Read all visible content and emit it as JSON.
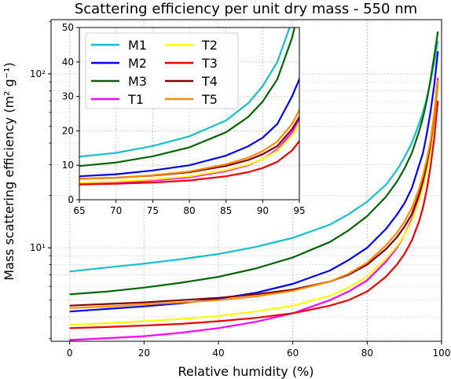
{
  "chart_data": {
    "type": "line",
    "title": "Scattering efficiency per unit dry mass - 550 nm",
    "xlabel": "Relative humidity (%)",
    "ylabel": "Mass scattering efficiency (m² g⁻¹)",
    "yscale": "log",
    "xlim": [
      -5,
      100
    ],
    "ylim": [
      2.9,
      205
    ],
    "xticks": [
      "0",
      "20",
      "40",
      "60",
      "80",
      "100"
    ],
    "yticks_major": [
      {
        "value": 10,
        "label": "10¹"
      },
      {
        "value": 100,
        "label": "10²"
      }
    ],
    "grid": true,
    "legend": "inset",
    "series": [
      {
        "name": "M1",
        "color": "#17becf",
        "x": [
          0,
          10,
          20,
          30,
          40,
          50,
          60,
          70,
          75,
          80,
          85,
          88,
          90,
          92,
          94,
          95,
          96,
          97,
          98,
          99
        ],
        "y": [
          7.3,
          7.7,
          8.1,
          8.6,
          9.2,
          10.1,
          11.4,
          13.6,
          15.6,
          18.4,
          23,
          28,
          33,
          40,
          52,
          60,
          72,
          90,
          115,
          155
        ]
      },
      {
        "name": "M2",
        "color": "#0000ee",
        "x": [
          0,
          10,
          20,
          30,
          40,
          50,
          60,
          70,
          75,
          80,
          85,
          88,
          90,
          92,
          94,
          95,
          96,
          97,
          98,
          99
        ],
        "y": [
          4.3,
          4.45,
          4.6,
          4.8,
          5.1,
          5.5,
          6.2,
          7.4,
          8.5,
          10,
          12.8,
          15.5,
          18,
          22,
          30,
          35,
          45,
          60,
          85,
          135
        ]
      },
      {
        "name": "M3",
        "color": "#006400",
        "x": [
          0,
          10,
          20,
          30,
          40,
          50,
          60,
          70,
          75,
          80,
          85,
          88,
          90,
          92,
          94,
          95,
          96,
          97,
          98,
          99
        ],
        "y": [
          5.4,
          5.6,
          5.9,
          6.3,
          6.8,
          7.6,
          8.8,
          10.8,
          12.6,
          15.2,
          19.6,
          24,
          28.5,
          35,
          47,
          56,
          70,
          92,
          125,
          175
        ]
      },
      {
        "name": "T1",
        "color": "#ff00ff",
        "x": [
          0,
          10,
          20,
          30,
          40,
          50,
          60,
          70,
          75,
          80,
          85,
          88,
          90,
          92,
          94,
          95,
          96,
          97,
          98,
          99
        ],
        "y": [
          2.95,
          3.02,
          3.1,
          3.25,
          3.45,
          3.75,
          4.2,
          5,
          5.6,
          6.5,
          8.3,
          10,
          11.8,
          14.6,
          19.6,
          23.5,
          30,
          40,
          58,
          95
        ]
      },
      {
        "name": "T2",
        "color": "#ffff00",
        "x": [
          0,
          10,
          20,
          30,
          40,
          50,
          60,
          70,
          75,
          80,
          85,
          88,
          90,
          92,
          94,
          95,
          96,
          97,
          98,
          99
        ],
        "y": [
          3.6,
          3.68,
          3.78,
          3.9,
          4.05,
          4.3,
          4.65,
          5.3,
          5.9,
          6.8,
          8.6,
          10.2,
          11.8,
          14.2,
          18.6,
          22,
          27.5,
          36,
          52,
          85
        ]
      },
      {
        "name": "T3",
        "color": "#ee0000",
        "x": [
          0,
          10,
          20,
          30,
          40,
          50,
          60,
          70,
          75,
          80,
          85,
          88,
          90,
          92,
          94,
          95,
          96,
          97,
          98,
          99
        ],
        "y": [
          3.45,
          3.5,
          3.57,
          3.65,
          3.78,
          3.95,
          4.2,
          4.65,
          5,
          5.6,
          6.8,
          8,
          9.2,
          11,
          14.3,
          17,
          21.5,
          29,
          42,
          70
        ]
      },
      {
        "name": "T4",
        "color": "#800000",
        "x": [
          0,
          10,
          20,
          30,
          40,
          50,
          60,
          70,
          75,
          80,
          85,
          88,
          90,
          92,
          94,
          95,
          96,
          97,
          98,
          99
        ],
        "y": [
          4.65,
          4.75,
          4.85,
          5,
          5.15,
          5.4,
          5.75,
          6.4,
          7,
          8,
          9.8,
          11.5,
          13.2,
          15.6,
          20.5,
          24,
          30,
          39,
          56,
          90
        ]
      },
      {
        "name": "T5",
        "color": "#ff8c00",
        "x": [
          0,
          10,
          20,
          30,
          40,
          50,
          60,
          70,
          75,
          80,
          85,
          88,
          90,
          92,
          94,
          95,
          96,
          97,
          98,
          99
        ],
        "y": [
          4.5,
          4.6,
          4.72,
          4.85,
          5,
          5.25,
          5.65,
          6.4,
          7.1,
          8.2,
          10.3,
          12.2,
          14.1,
          16.9,
          22,
          26,
          32,
          41,
          58,
          92
        ]
      }
    ],
    "inset": {
      "type": "line",
      "xlim": [
        65,
        95
      ],
      "ylim": [
        0,
        50
      ],
      "xticks": [
        "65",
        "70",
        "75",
        "80",
        "85",
        "90",
        "95"
      ],
      "yticks": [
        "0",
        "10",
        "20",
        "30",
        "40",
        "50"
      ]
    }
  }
}
